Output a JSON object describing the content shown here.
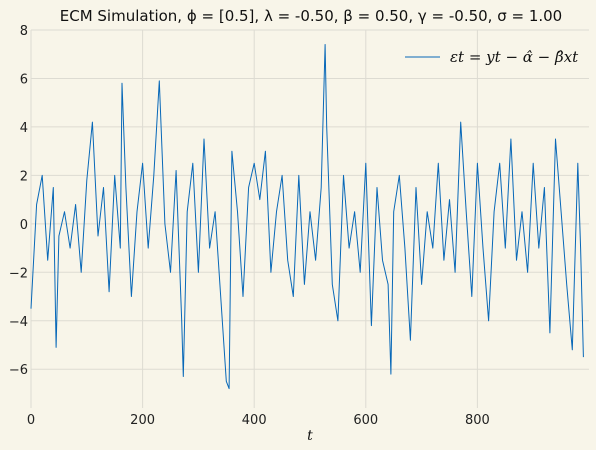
{
  "chart_data": {
    "type": "line",
    "title": "ECM Simulation, ϕ = [0.5], λ = -0.50, β = 0.50, γ = -0.50, σ = 1.00",
    "xlabel": "t",
    "ylabel": "",
    "xlim": [
      0,
      1000
    ],
    "ylim": [
      -7.6,
      8.0
    ],
    "xticks": [
      0,
      200,
      400,
      600,
      800
    ],
    "yticks": [
      -6,
      -4,
      -2,
      0,
      2,
      4,
      6,
      8
    ],
    "xtick_labels": [
      "0",
      "200",
      "400",
      "600",
      "800"
    ],
    "ytick_labels": [
      "−6",
      "−4",
      "−2",
      "0",
      "2",
      "4",
      "6",
      "8"
    ],
    "grid": true,
    "legend_position": "top-right",
    "series": [
      {
        "name": "εt = yt − α̂ − β̂xt",
        "color": "#0868b8",
        "x": [
          0,
          10,
          20,
          30,
          40,
          45,
          50,
          60,
          70,
          80,
          90,
          100,
          110,
          120,
          130,
          140,
          150,
          160,
          163,
          170,
          180,
          190,
          200,
          210,
          220,
          230,
          240,
          250,
          260,
          270,
          273,
          280,
          290,
          300,
          310,
          320,
          330,
          340,
          350,
          355,
          360,
          370,
          380,
          390,
          400,
          410,
          420,
          430,
          440,
          450,
          460,
          470,
          480,
          490,
          500,
          510,
          520,
          527,
          530,
          540,
          550,
          560,
          570,
          580,
          590,
          600,
          610,
          620,
          630,
          640,
          645,
          650,
          660,
          670,
          680,
          690,
          700,
          710,
          720,
          730,
          740,
          750,
          760,
          770,
          780,
          790,
          800,
          810,
          820,
          830,
          840,
          850,
          860,
          870,
          880,
          890,
          900,
          910,
          920,
          930,
          940,
          950,
          960,
          970,
          980,
          985,
          990
        ],
        "y": [
          -3.5,
          0.8,
          2.0,
          -1.5,
          1.5,
          -5.1,
          -0.5,
          0.5,
          -1.0,
          0.8,
          -2.0,
          1.8,
          4.2,
          -0.5,
          1.5,
          -2.8,
          2.0,
          -1.0,
          5.8,
          1.5,
          -3.0,
          0.5,
          2.5,
          -1.0,
          2.0,
          5.9,
          0.0,
          -2.0,
          2.2,
          -4.0,
          -6.3,
          0.5,
          2.5,
          -2.0,
          3.5,
          -1.0,
          0.5,
          -3.0,
          -6.5,
          -6.8,
          3.0,
          0.5,
          -3.0,
          1.5,
          2.5,
          1.0,
          3.0,
          -2.0,
          0.5,
          2.0,
          -1.5,
          -3.0,
          2.0,
          -2.5,
          0.5,
          -1.5,
          1.5,
          7.4,
          4.0,
          -2.5,
          -4.0,
          2.0,
          -1.0,
          0.5,
          -2.0,
          2.5,
          -4.2,
          1.5,
          -1.5,
          -2.5,
          -6.2,
          0.5,
          2.0,
          -1.0,
          -4.8,
          1.5,
          -2.5,
          0.5,
          -1.0,
          2.5,
          -1.5,
          1.0,
          -2.0,
          4.2,
          0.5,
          -3.0,
          2.5,
          -1.0,
          -4.0,
          0.5,
          2.5,
          -1.0,
          3.5,
          -1.5,
          0.5,
          -2.0,
          2.5,
          -1.0,
          1.5,
          -4.5,
          3.5,
          0.5,
          -2.5,
          -5.2,
          2.5,
          -1.0,
          -5.5
        ]
      }
    ]
  }
}
